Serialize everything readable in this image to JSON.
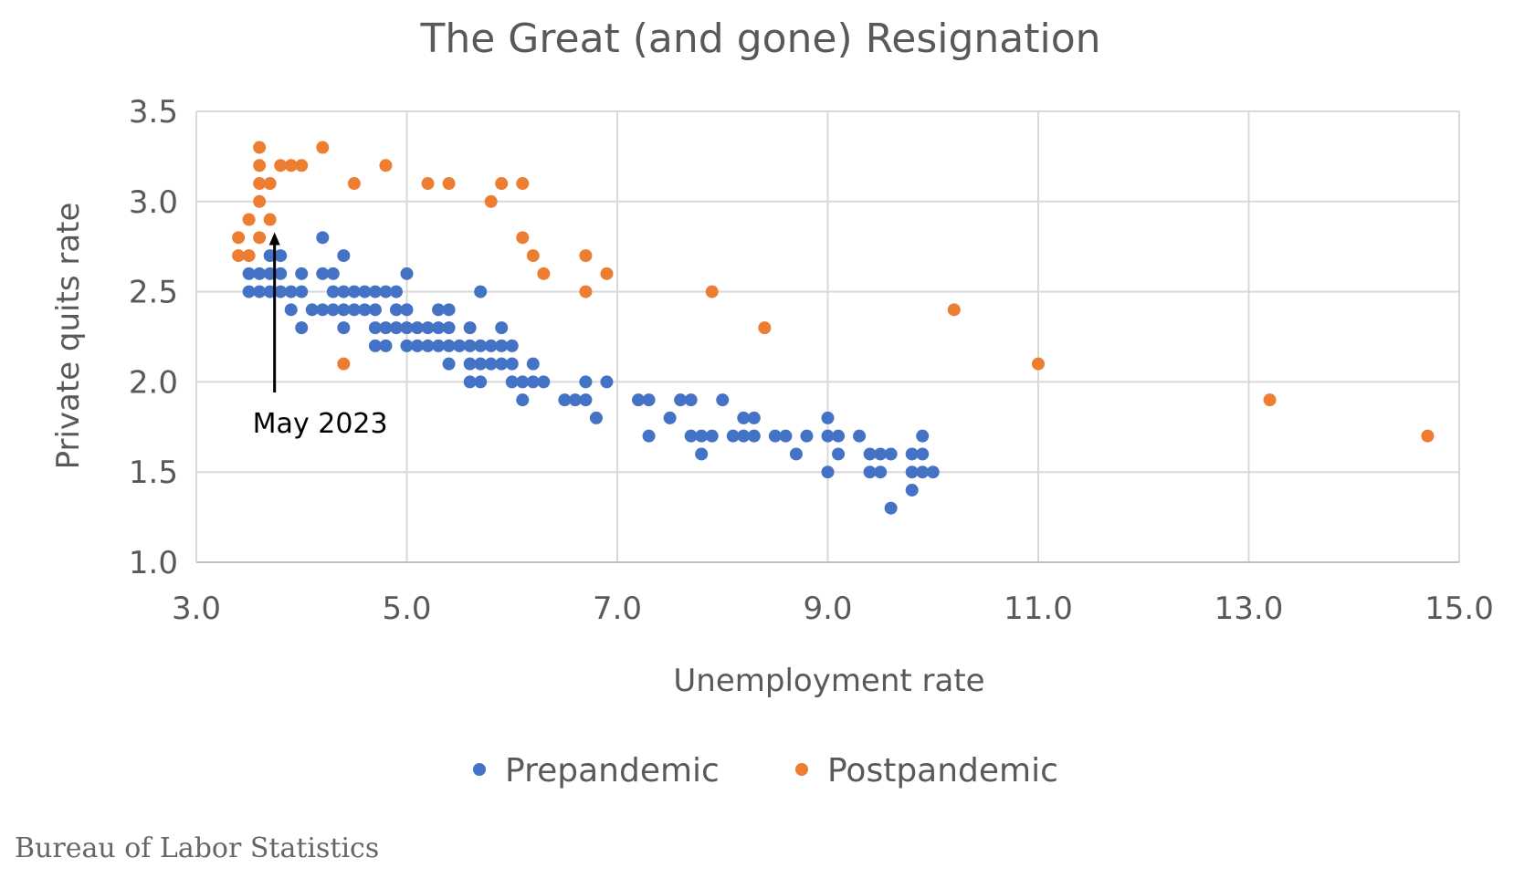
{
  "source": "Bureau of Labor Statistics",
  "chart_data": {
    "type": "scatter",
    "title": "The Great (and gone) Resignation",
    "xlabel": "Unemployment rate",
    "ylabel": "Private quits rate",
    "xlim": [
      3.0,
      15.0
    ],
    "ylim": [
      1.0,
      3.5
    ],
    "xticks": [
      "3.0",
      "5.0",
      "7.0",
      "9.0",
      "11.0",
      "13.0",
      "15.0"
    ],
    "yticks": [
      "1.0",
      "1.5",
      "2.0",
      "2.5",
      "3.0",
      "3.5"
    ],
    "grid": true,
    "legend_position": "bottom",
    "annotation": {
      "label": "May 2023",
      "x": 3.7,
      "y": 2.9
    },
    "series": [
      {
        "name": "Prepandemic",
        "color": "#4472C4",
        "points": [
          [
            3.5,
            2.5
          ],
          [
            3.5,
            2.6
          ],
          [
            3.6,
            2.5
          ],
          [
            3.6,
            2.6
          ],
          [
            3.7,
            2.5
          ],
          [
            3.7,
            2.6
          ],
          [
            3.7,
            2.7
          ],
          [
            3.8,
            2.5
          ],
          [
            3.8,
            2.6
          ],
          [
            3.8,
            2.7
          ],
          [
            3.9,
            2.4
          ],
          [
            3.9,
            2.5
          ],
          [
            4.0,
            2.3
          ],
          [
            4.0,
            2.5
          ],
          [
            4.0,
            2.6
          ],
          [
            4.1,
            2.4
          ],
          [
            4.2,
            2.4
          ],
          [
            4.2,
            2.6
          ],
          [
            4.2,
            2.8
          ],
          [
            4.3,
            2.4
          ],
          [
            4.3,
            2.5
          ],
          [
            4.3,
            2.6
          ],
          [
            4.4,
            2.3
          ],
          [
            4.4,
            2.4
          ],
          [
            4.4,
            2.5
          ],
          [
            4.4,
            2.7
          ],
          [
            4.5,
            2.4
          ],
          [
            4.5,
            2.5
          ],
          [
            4.6,
            2.4
          ],
          [
            4.6,
            2.5
          ],
          [
            4.7,
            2.2
          ],
          [
            4.7,
            2.3
          ],
          [
            4.7,
            2.4
          ],
          [
            4.7,
            2.5
          ],
          [
            4.8,
            2.2
          ],
          [
            4.8,
            2.3
          ],
          [
            4.8,
            2.5
          ],
          [
            4.9,
            2.3
          ],
          [
            4.9,
            2.4
          ],
          [
            4.9,
            2.5
          ],
          [
            5.0,
            2.2
          ],
          [
            5.0,
            2.3
          ],
          [
            5.0,
            2.4
          ],
          [
            5.0,
            2.6
          ],
          [
            5.1,
            2.2
          ],
          [
            5.1,
            2.3
          ],
          [
            5.2,
            2.2
          ],
          [
            5.2,
            2.3
          ],
          [
            5.3,
            2.2
          ],
          [
            5.3,
            2.3
          ],
          [
            5.3,
            2.4
          ],
          [
            5.4,
            2.1
          ],
          [
            5.4,
            2.2
          ],
          [
            5.4,
            2.3
          ],
          [
            5.4,
            2.4
          ],
          [
            5.5,
            2.2
          ],
          [
            5.6,
            2.0
          ],
          [
            5.6,
            2.1
          ],
          [
            5.6,
            2.2
          ],
          [
            5.6,
            2.3
          ],
          [
            5.7,
            2.0
          ],
          [
            5.7,
            2.1
          ],
          [
            5.7,
            2.2
          ],
          [
            5.7,
            2.5
          ],
          [
            5.8,
            2.1
          ],
          [
            5.8,
            2.2
          ],
          [
            5.9,
            2.1
          ],
          [
            5.9,
            2.2
          ],
          [
            5.9,
            2.3
          ],
          [
            6.0,
            2.0
          ],
          [
            6.0,
            2.1
          ],
          [
            6.0,
            2.2
          ],
          [
            6.1,
            1.9
          ],
          [
            6.1,
            2.0
          ],
          [
            6.2,
            2.0
          ],
          [
            6.2,
            2.1
          ],
          [
            6.3,
            2.0
          ],
          [
            6.5,
            1.9
          ],
          [
            6.6,
            1.9
          ],
          [
            6.7,
            1.9
          ],
          [
            6.7,
            2.0
          ],
          [
            6.8,
            1.8
          ],
          [
            6.9,
            2.0
          ],
          [
            7.2,
            1.9
          ],
          [
            7.3,
            1.7
          ],
          [
            7.3,
            1.9
          ],
          [
            7.5,
            1.8
          ],
          [
            7.6,
            1.9
          ],
          [
            7.7,
            1.7
          ],
          [
            7.7,
            1.9
          ],
          [
            7.8,
            1.6
          ],
          [
            7.8,
            1.7
          ],
          [
            7.9,
            1.7
          ],
          [
            8.0,
            1.9
          ],
          [
            8.1,
            1.7
          ],
          [
            8.2,
            1.7
          ],
          [
            8.2,
            1.8
          ],
          [
            8.3,
            1.7
          ],
          [
            8.3,
            1.8
          ],
          [
            8.5,
            1.7
          ],
          [
            8.6,
            1.7
          ],
          [
            8.7,
            1.6
          ],
          [
            8.8,
            1.7
          ],
          [
            9.0,
            1.5
          ],
          [
            9.0,
            1.7
          ],
          [
            9.0,
            1.8
          ],
          [
            9.1,
            1.6
          ],
          [
            9.1,
            1.7
          ],
          [
            9.3,
            1.7
          ],
          [
            9.4,
            1.5
          ],
          [
            9.4,
            1.6
          ],
          [
            9.5,
            1.5
          ],
          [
            9.5,
            1.6
          ],
          [
            9.6,
            1.3
          ],
          [
            9.6,
            1.6
          ],
          [
            9.8,
            1.4
          ],
          [
            9.8,
            1.5
          ],
          [
            9.8,
            1.6
          ],
          [
            9.9,
            1.5
          ],
          [
            9.9,
            1.6
          ],
          [
            9.9,
            1.7
          ],
          [
            10.0,
            1.5
          ]
        ]
      },
      {
        "name": "Postpandemic",
        "color": "#ED7D31",
        "points": [
          [
            3.4,
            2.7
          ],
          [
            3.4,
            2.8
          ],
          [
            3.5,
            2.7
          ],
          [
            3.5,
            2.9
          ],
          [
            3.6,
            2.8
          ],
          [
            3.6,
            3.0
          ],
          [
            3.6,
            3.1
          ],
          [
            3.6,
            3.2
          ],
          [
            3.6,
            3.3
          ],
          [
            3.7,
            2.9
          ],
          [
            3.7,
            3.1
          ],
          [
            3.8,
            3.2
          ],
          [
            3.9,
            3.2
          ],
          [
            4.0,
            3.2
          ],
          [
            4.2,
            3.3
          ],
          [
            4.4,
            2.1
          ],
          [
            4.5,
            3.1
          ],
          [
            4.8,
            3.2
          ],
          [
            5.2,
            3.1
          ],
          [
            5.4,
            3.1
          ],
          [
            5.8,
            3.0
          ],
          [
            5.9,
            3.1
          ],
          [
            6.1,
            2.8
          ],
          [
            6.1,
            3.1
          ],
          [
            6.2,
            2.7
          ],
          [
            6.3,
            2.6
          ],
          [
            6.7,
            2.5
          ],
          [
            6.7,
            2.7
          ],
          [
            6.9,
            2.6
          ],
          [
            7.9,
            2.5
          ],
          [
            8.4,
            2.3
          ],
          [
            10.2,
            2.4
          ],
          [
            11.0,
            2.1
          ],
          [
            13.2,
            1.9
          ],
          [
            14.7,
            1.7
          ]
        ]
      }
    ]
  }
}
